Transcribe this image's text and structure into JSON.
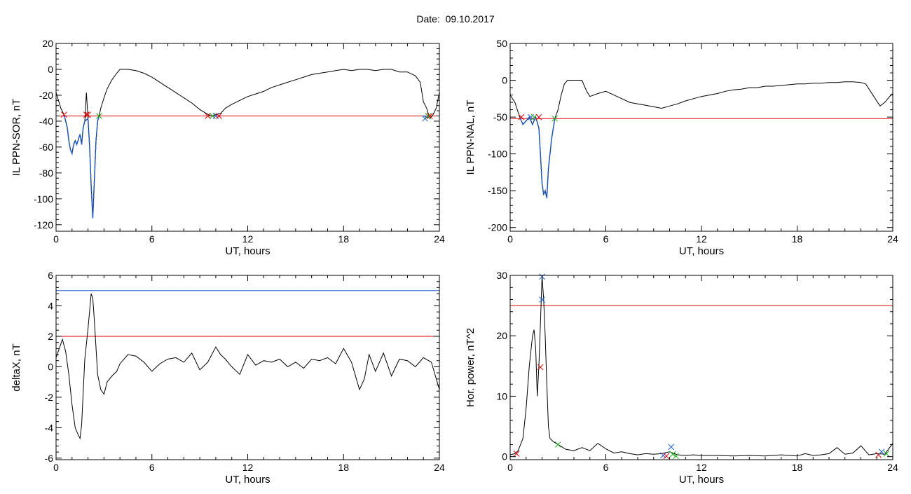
{
  "title": "Date:  09.10.2017",
  "chart_data": [
    {
      "type": "line",
      "ylabel": "IL PPN-SOR, nT",
      "xlabel": "UT, hours",
      "xlim": [
        0,
        24
      ],
      "ylim": [
        -125,
        20
      ],
      "xticks": [
        0,
        6,
        12,
        18,
        24
      ],
      "yticks": [
        -120,
        -100,
        -80,
        -60,
        -40,
        -20,
        0,
        20
      ],
      "threshold_lines": [
        {
          "y": -36,
          "color": "#e00000"
        }
      ],
      "series": [
        {
          "color": "#000000",
          "x": [
            0,
            0.3,
            0.5,
            0.7,
            0.8,
            0.9,
            1.0,
            1.1,
            1.2,
            1.3,
            1.5,
            1.6,
            1.7,
            1.8,
            1.9,
            2.0,
            2.1,
            2.2,
            2.3,
            2.4,
            2.5,
            2.6,
            2.7,
            2.8,
            3.0,
            3.2,
            3.5,
            3.8,
            4.0,
            4.5,
            5.0,
            5.5,
            6.0,
            6.5,
            7.0,
            7.5,
            8.0,
            8.5,
            9.0,
            9.4,
            9.7,
            10.0,
            10.3,
            10.6,
            11.0,
            11.5,
            12.0,
            12.5,
            13.0,
            13.5,
            14.0,
            14.5,
            15.0,
            15.5,
            16.0,
            16.5,
            17.0,
            17.5,
            18.0,
            18.5,
            19.0,
            19.5,
            20.0,
            20.5,
            21.0,
            21.5,
            22.0,
            22.5,
            22.8,
            23.0,
            23.2,
            23.4,
            23.6,
            23.8,
            24.0
          ],
          "y": [
            -18,
            -30,
            -35,
            -45,
            -55,
            -62,
            -65,
            -58,
            -55,
            -58,
            -50,
            -58,
            -45,
            -40,
            -18,
            -38,
            -60,
            -90,
            -115,
            -85,
            -55,
            -40,
            -36,
            -30,
            -22,
            -15,
            -8,
            -3,
            0,
            0,
            -1,
            -3,
            -6,
            -10,
            -14,
            -18,
            -22,
            -26,
            -31,
            -34,
            -36,
            -35,
            -34,
            -30,
            -27,
            -24,
            -21,
            -19,
            -17,
            -14,
            -12,
            -10,
            -8,
            -6,
            -4,
            -3,
            -2,
            -1,
            0,
            -1,
            0,
            0,
            -1,
            0,
            0,
            -2,
            -2,
            -5,
            -10,
            -25,
            -30,
            -38,
            -35,
            -30,
            -18
          ]
        },
        {
          "color": "#1f5fd0",
          "x": [
            0.5,
            0.7,
            0.8,
            0.9,
            1.0,
            1.1,
            1.2,
            1.3,
            1.5,
            1.6,
            1.7,
            1.8,
            2.0,
            2.1,
            2.2,
            2.3,
            2.4,
            2.5,
            2.6,
            2.7
          ],
          "y": [
            -35,
            -45,
            -55,
            -62,
            -65,
            -58,
            -55,
            -58,
            -50,
            -58,
            -45,
            -40,
            -38,
            -60,
            -90,
            -115,
            -85,
            -55,
            -40,
            -36
          ]
        },
        {
          "color": "#1f5fd0",
          "x": [
            23.0,
            23.1,
            23.2,
            23.3,
            23.4
          ],
          "y": [
            -36,
            -36,
            -38,
            -37,
            -36
          ]
        }
      ],
      "markers": [
        {
          "x": 0.5,
          "y": -35,
          "color": "#e00000"
        },
        {
          "x": 1.9,
          "y": -35,
          "color": "#e00000"
        },
        {
          "x": 2.0,
          "y": -35,
          "color": "#e00000"
        },
        {
          "x": 2.7,
          "y": -36,
          "color": "#20b020"
        },
        {
          "x": 9.5,
          "y": -36,
          "color": "#e00000"
        },
        {
          "x": 9.8,
          "y": -36,
          "color": "#20b020"
        },
        {
          "x": 10.0,
          "y": -36,
          "color": "#1f5fd0"
        },
        {
          "x": 10.2,
          "y": -36,
          "color": "#e00000"
        },
        {
          "x": 23.1,
          "y": -38,
          "color": "#1f5fd0"
        },
        {
          "x": 23.3,
          "y": -36,
          "color": "#20b020"
        },
        {
          "x": 23.4,
          "y": -36,
          "color": "#e00000"
        }
      ]
    },
    {
      "type": "line",
      "ylabel": "IL PPN-NAL, nT",
      "xlabel": "UT, hours",
      "xlim": [
        0,
        24
      ],
      "ylim": [
        -205,
        50
      ],
      "xticks": [
        0,
        6,
        12,
        18,
        24
      ],
      "yticks": [
        -200,
        -150,
        -100,
        -50,
        0,
        50
      ],
      "threshold_lines": [
        {
          "y": -52,
          "color": "#e00000"
        }
      ],
      "series": [
        {
          "color": "#000000",
          "x": [
            0,
            0.3,
            0.6,
            0.8,
            1.0,
            1.2,
            1.4,
            1.6,
            1.8,
            1.9,
            2.0,
            2.1,
            2.2,
            2.3,
            2.4,
            2.6,
            2.8,
            3.0,
            3.2,
            3.4,
            3.6,
            4.0,
            4.5,
            4.8,
            5.0,
            5.5,
            6.0,
            6.5,
            7.0,
            7.5,
            8.0,
            8.5,
            9.0,
            9.5,
            10.0,
            10.5,
            11.0,
            11.5,
            12.0,
            12.5,
            13.0,
            13.5,
            14.0,
            14.5,
            15.0,
            15.5,
            16.0,
            16.5,
            17.0,
            17.5,
            18.0,
            18.5,
            19.0,
            19.5,
            20.0,
            20.5,
            21.0,
            21.5,
            22.0,
            22.3,
            22.6,
            22.9,
            23.2,
            23.5,
            23.8,
            24.0
          ],
          "y": [
            -20,
            -30,
            -50,
            -60,
            -55,
            -50,
            -60,
            -50,
            -65,
            -100,
            -140,
            -155,
            -150,
            -160,
            -120,
            -80,
            -52,
            -40,
            -20,
            -5,
            0,
            0,
            0,
            -15,
            -22,
            -18,
            -15,
            -20,
            -25,
            -30,
            -32,
            -34,
            -36,
            -38,
            -35,
            -32,
            -28,
            -25,
            -22,
            -20,
            -18,
            -15,
            -13,
            -12,
            -10,
            -10,
            -8,
            -8,
            -7,
            -6,
            -5,
            -5,
            -4,
            -4,
            -3,
            -3,
            -2,
            -2,
            -3,
            -5,
            -15,
            -25,
            -35,
            -30,
            -22,
            -18
          ]
        },
        {
          "color": "#1f5fd0",
          "x": [
            0.6,
            0.8,
            1.0,
            1.2,
            1.4,
            1.6,
            1.8,
            1.9,
            2.0,
            2.1,
            2.2,
            2.3,
            2.4,
            2.6,
            2.8
          ],
          "y": [
            -50,
            -60,
            -55,
            -50,
            -60,
            -50,
            -65,
            -100,
            -140,
            -155,
            -150,
            -160,
            -120,
            -80,
            -52
          ]
        }
      ],
      "markers": [
        {
          "x": 0.7,
          "y": -50,
          "color": "#e00000"
        },
        {
          "x": 1.3,
          "y": -50,
          "color": "#1f5fd0"
        },
        {
          "x": 1.5,
          "y": -50,
          "color": "#20b020"
        },
        {
          "x": 1.8,
          "y": -50,
          "color": "#e00000"
        },
        {
          "x": 2.8,
          "y": -52,
          "color": "#20b020"
        }
      ]
    },
    {
      "type": "line",
      "ylabel": "deltaX, nT",
      "xlabel": "UT, hours",
      "xlim": [
        0,
        24
      ],
      "ylim": [
        -6.1,
        6.0
      ],
      "xticks": [
        0,
        6,
        12,
        18,
        24
      ],
      "yticks": [
        -6,
        -4,
        -2,
        0,
        2,
        4,
        6
      ],
      "threshold_lines": [
        {
          "y": 5,
          "color": "#1f5fd0"
        },
        {
          "y": 2,
          "color": "#e00000"
        }
      ],
      "series": [
        {
          "color": "#000000",
          "x": [
            0,
            0.2,
            0.4,
            0.6,
            0.8,
            1.0,
            1.2,
            1.4,
            1.5,
            1.6,
            1.8,
            2.0,
            2.2,
            2.3,
            2.4,
            2.6,
            2.8,
            3.0,
            3.2,
            3.5,
            3.8,
            4.0,
            4.5,
            5.0,
            5.5,
            6.0,
            6.5,
            7.0,
            7.5,
            8.0,
            8.5,
            9.0,
            9.5,
            10.0,
            10.3,
            10.6,
            11.0,
            11.5,
            12.0,
            12.5,
            13.0,
            13.5,
            14.0,
            14.5,
            15.0,
            15.5,
            16.0,
            16.5,
            17.0,
            17.5,
            18.0,
            18.5,
            19.0,
            19.3,
            19.6,
            20.0,
            20.5,
            21.0,
            21.5,
            22.0,
            22.5,
            23.0,
            23.5,
            24.0
          ],
          "y": [
            0.6,
            1.2,
            1.8,
            1.0,
            -0.5,
            -2.5,
            -4.0,
            -4.5,
            -4.7,
            -3.8,
            0.5,
            2.5,
            4.8,
            4.5,
            3.0,
            -0.5,
            -1.5,
            -1.8,
            -1.0,
            -0.6,
            -0.3,
            0.2,
            0.8,
            0.7,
            0.3,
            -0.3,
            0.2,
            0.5,
            0.6,
            0.3,
            0.9,
            -0.2,
            0.3,
            1.3,
            0.8,
            0.5,
            0.0,
            -0.5,
            0.8,
            0.1,
            0.4,
            0.3,
            0.5,
            0.0,
            0.3,
            -0.1,
            0.5,
            0.4,
            0.6,
            0.2,
            1.2,
            0.3,
            -1.5,
            -0.8,
            0.8,
            -0.3,
            0.9,
            -0.6,
            0.5,
            0.4,
            0.0,
            0.6,
            0.3,
            -1.5
          ]
        }
      ],
      "markers": []
    },
    {
      "type": "line",
      "ylabel": "Hor. power, nT^2",
      "xlabel": "UT, hours",
      "xlim": [
        0,
        24
      ],
      "ylim": [
        -0.5,
        30
      ],
      "xticks": [
        0,
        6,
        12,
        18,
        24
      ],
      "yticks": [
        0,
        10,
        20,
        30
      ],
      "threshold_lines": [
        {
          "y": 25,
          "color": "#e00000"
        }
      ],
      "series": [
        {
          "color": "#000000",
          "x": [
            0,
            0.3,
            0.5,
            0.8,
            1.0,
            1.2,
            1.4,
            1.5,
            1.6,
            1.7,
            1.8,
            1.9,
            2.0,
            2.1,
            2.2,
            2.3,
            2.4,
            2.5,
            2.7,
            3.0,
            3.5,
            4.0,
            4.5,
            5.0,
            5.5,
            6.0,
            6.5,
            7.0,
            7.5,
            8.0,
            8.5,
            9.0,
            9.5,
            10.0,
            10.5,
            11.0,
            11.5,
            12.0,
            13.0,
            14.0,
            15.0,
            16.0,
            17.0,
            18.0,
            18.5,
            19.0,
            19.5,
            20.0,
            20.5,
            21.0,
            21.5,
            22.0,
            22.5,
            23.0,
            23.5,
            24.0
          ],
          "y": [
            0.3,
            0.5,
            1.0,
            3.0,
            8.0,
            15.0,
            20.0,
            21.0,
            18.0,
            10.0,
            15.0,
            22.0,
            30.0,
            26.0,
            20.0,
            12.0,
            5.0,
            3.0,
            2.5,
            2.0,
            1.2,
            1.0,
            1.5,
            1.0,
            2.2,
            1.3,
            0.6,
            0.8,
            0.5,
            0.3,
            0.5,
            0.4,
            0.5,
            0.8,
            0.3,
            0.2,
            0.3,
            0.2,
            0.2,
            0.1,
            0.2,
            0.1,
            0.3,
            0.1,
            0.5,
            0.2,
            0.3,
            0.5,
            1.5,
            0.4,
            0.6,
            1.8,
            0.3,
            0.5,
            0.4,
            2.2
          ]
        }
      ],
      "markers": [
        {
          "x": 0.4,
          "y": 0.5,
          "color": "#e00000"
        },
        {
          "x": 2.0,
          "y": 29.8,
          "color": "#1f5fd0"
        },
        {
          "x": 2.0,
          "y": 26.0,
          "color": "#1f5fd0"
        },
        {
          "x": 1.9,
          "y": 14.8,
          "color": "#e00000"
        },
        {
          "x": 3.0,
          "y": 2.0,
          "color": "#20b020"
        },
        {
          "x": 9.6,
          "y": 0.2,
          "color": "#1f5fd0"
        },
        {
          "x": 9.8,
          "y": 0.1,
          "color": "#e00000"
        },
        {
          "x": 10.1,
          "y": 1.6,
          "color": "#1f5fd0"
        },
        {
          "x": 10.2,
          "y": 0.4,
          "color": "#20b020"
        },
        {
          "x": 10.4,
          "y": 0.1,
          "color": "#20b020"
        },
        {
          "x": 23.1,
          "y": 0.3,
          "color": "#e00000"
        },
        {
          "x": 23.3,
          "y": 0.8,
          "color": "#1f5fd0"
        },
        {
          "x": 23.6,
          "y": 0.5,
          "color": "#20b020"
        }
      ]
    }
  ]
}
